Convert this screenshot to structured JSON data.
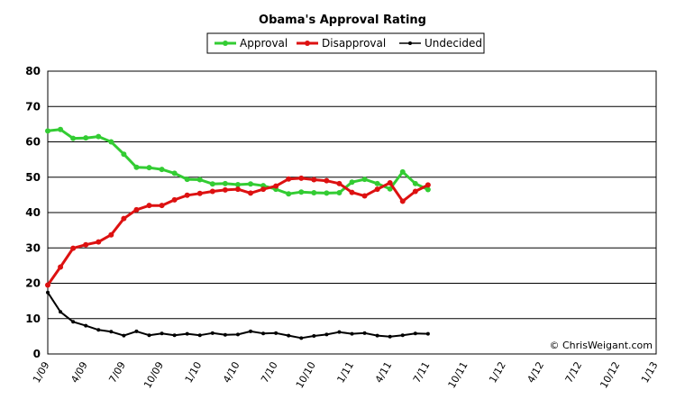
{
  "chart_data": {
    "type": "line",
    "title": "Obama's Approval Rating",
    "ylim": [
      0,
      80
    ],
    "yticks": [
      0,
      10,
      20,
      30,
      40,
      50,
      60,
      70,
      80
    ],
    "x_labels": [
      "1/09",
      "4/09",
      "7/09",
      "10/09",
      "1/10",
      "4/10",
      "7/10",
      "10/10",
      "1/11",
      "4/11",
      "7/11",
      "10/11",
      "1/12",
      "4/12",
      "7/12",
      "10/12",
      "1/13"
    ],
    "grid": "horizontal",
    "legend_position": "top",
    "credit": "© ChrisWeigant.com",
    "series": [
      {
        "name": "Approval",
        "color": "#33cc33",
        "values": [
          63.1,
          63.5,
          61.0,
          61.1,
          61.5,
          60.0,
          56.5,
          52.8,
          52.7,
          52.2,
          51.1,
          49.4,
          49.3,
          48.1,
          48.2,
          47.9,
          48.1,
          47.6,
          46.6,
          45.3,
          45.8,
          45.6,
          45.5,
          45.6,
          48.6,
          49.4,
          48.2,
          46.7,
          51.5,
          48.2,
          46.5
        ]
      },
      {
        "name": "Disapproval",
        "color": "#dd1111",
        "values": [
          19.5,
          24.6,
          29.9,
          30.9,
          31.7,
          33.7,
          38.3,
          40.8,
          42.0,
          42.0,
          43.6,
          44.9,
          45.4,
          46.0,
          46.4,
          46.6,
          45.5,
          46.6,
          47.5,
          49.5,
          49.7,
          49.3,
          49.0,
          48.2,
          45.7,
          44.7,
          46.6,
          48.4,
          43.2,
          46.0,
          47.8
        ]
      },
      {
        "name": "Undecided",
        "color": "#000000",
        "values": [
          17.4,
          11.9,
          9.1,
          8.0,
          6.8,
          6.3,
          5.2,
          6.4,
          5.3,
          5.8,
          5.3,
          5.7,
          5.3,
          5.9,
          5.4,
          5.5,
          6.4,
          5.8,
          5.9,
          5.2,
          4.5,
          5.1,
          5.5,
          6.2,
          5.7,
          5.9,
          5.2,
          4.9,
          5.3,
          5.8,
          5.7
        ]
      }
    ]
  }
}
